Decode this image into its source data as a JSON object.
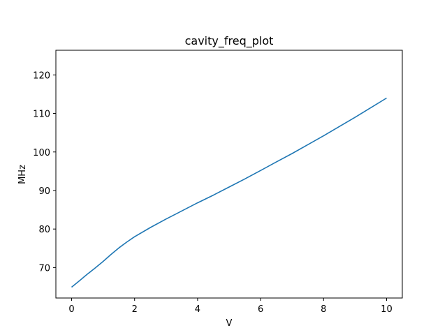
{
  "chart_data": {
    "type": "line",
    "title": "cavity_freq_plot",
    "xlabel": "V",
    "ylabel": "MHz",
    "xlim": [
      -0.5,
      10.5
    ],
    "ylim": [
      62.1,
      126.4
    ],
    "xticks": [
      0,
      2,
      4,
      6,
      8,
      10
    ],
    "yticks": [
      70,
      80,
      90,
      100,
      110,
      120
    ],
    "grid": false,
    "series": [
      {
        "color": "#1f77b4",
        "x": [
          0,
          0.25,
          0.5,
          0.75,
          1.0,
          1.25,
          1.5,
          1.75,
          2.0,
          2.5,
          3.0,
          3.5,
          4.0,
          4.5,
          5.0,
          5.5,
          6.0,
          6.5,
          7.0,
          7.5,
          8.0,
          8.5,
          9.0,
          9.5,
          10.0
        ],
        "y": [
          64.9,
          66.6,
          68.3,
          69.9,
          71.6,
          73.4,
          75.1,
          76.6,
          78.0,
          80.4,
          82.6,
          84.7,
          86.8,
          88.8,
          90.9,
          93.0,
          95.2,
          97.4,
          99.6,
          101.9,
          104.2,
          106.6,
          109.0,
          111.5,
          114.0
        ]
      }
    ]
  }
}
